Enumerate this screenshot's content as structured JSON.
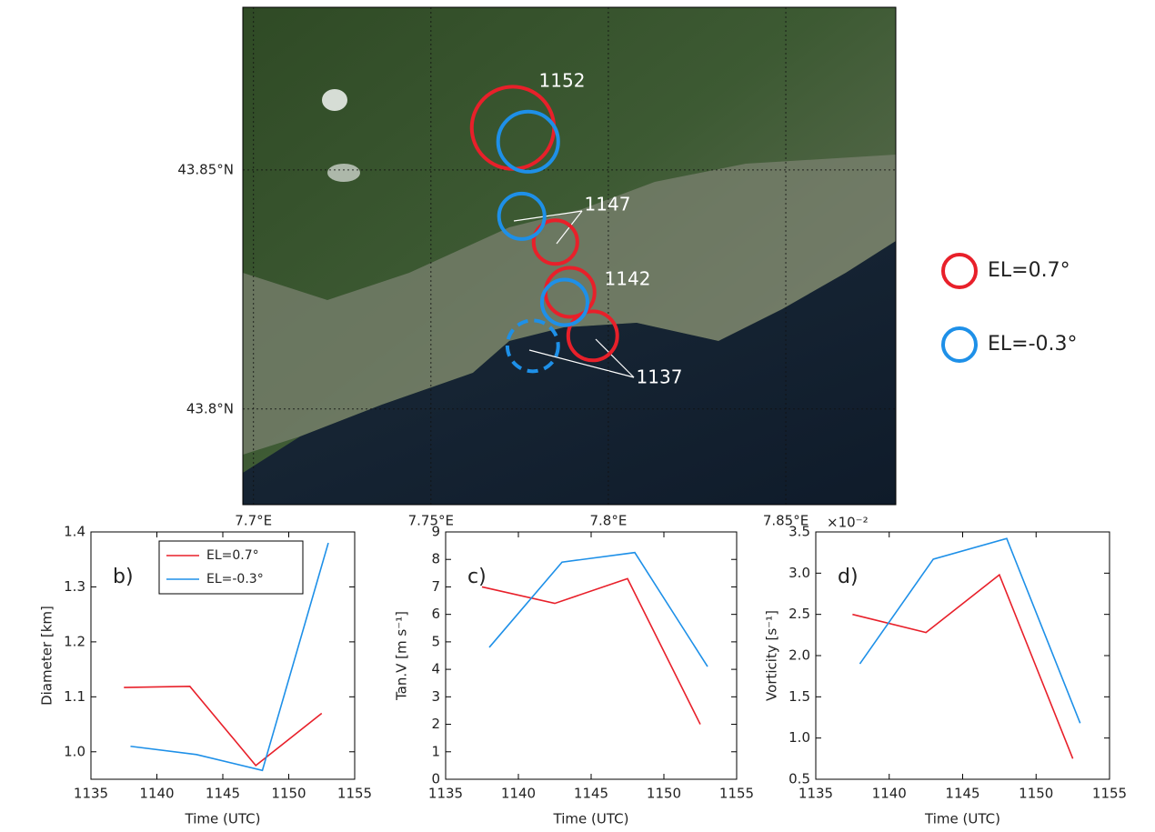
{
  "chart_data": [
    {
      "type": "map",
      "xlim": [
        7.697,
        7.881
      ],
      "ylim": [
        43.78,
        43.884
      ],
      "xticks": [
        {
          "value": 7.7,
          "label": "7.7°E"
        },
        {
          "value": 7.75,
          "label": "7.75°E"
        },
        {
          "value": 7.8,
          "label": "7.8°E"
        },
        {
          "value": 7.85,
          "label": "7.85°E"
        }
      ],
      "yticks": [
        {
          "value": 43.8,
          "label": "43.8°N"
        },
        {
          "value": 43.85,
          "label": "43.85°N"
        }
      ],
      "grid": true,
      "annotations": [
        "1137",
        "1142",
        "1147",
        "1152"
      ],
      "series": [
        {
          "name": "EL=0.7°",
          "color": "#e8202a",
          "x": [
            7.7956,
            7.7892,
            7.7851,
            7.7731
          ],
          "y": [
            43.8153,
            43.8244,
            43.8349,
            43.8588
          ],
          "sizes": [
            1.11,
            1.11,
            0.99,
            1.86
          ],
          "linestyle": [
            "solid",
            "solid",
            "solid",
            "solid"
          ]
        },
        {
          "name": "EL=-0.3°",
          "color": "#1e90e8",
          "x": [
            7.7787,
            7.7877,
            7.7756,
            7.7774
          ],
          "y": [
            43.8132,
            43.8223,
            43.8403,
            43.8559
          ],
          "sizes": [
            1.15,
            1.03,
            1.03,
            1.36
          ],
          "linestyle": [
            "dashed",
            "solid",
            "solid",
            "solid"
          ]
        }
      ]
    },
    {
      "type": "line",
      "panel_label": "b)",
      "xlabel": "Time (UTC)",
      "ylabel": "Diameter [km]",
      "xlim": [
        1135,
        1155
      ],
      "ylim": [
        0.95,
        1.4
      ],
      "xticks": [
        1135,
        1140,
        1145,
        1150,
        1155
      ],
      "yticks": [
        {
          "value": 1,
          "label": "1.0"
        },
        1.1,
        1.2,
        1.3,
        1.4
      ],
      "legend": "upper center",
      "series": [
        {
          "name": "EL=0.7°",
          "color": "#e8202a",
          "x": [
            1137.5,
            1142.5,
            1147.5,
            1152.5
          ],
          "values": [
            1.117,
            1.119,
            0.975,
            1.07
          ]
        },
        {
          "name": "EL=-0.3°",
          "color": "#1e90e8",
          "x": [
            1138,
            1143,
            1148,
            1153
          ],
          "values": [
            1.01,
            0.995,
            0.966,
            1.38
          ]
        }
      ]
    },
    {
      "type": "line",
      "panel_label": "c)",
      "xlabel": "Time (UTC)",
      "ylabel": "Tan.V [m s⁻¹]",
      "xlim": [
        1135,
        1155
      ],
      "ylim": [
        0,
        9
      ],
      "xticks": [
        1135,
        1140,
        1145,
        1150,
        1155
      ],
      "yticks": [
        0,
        1,
        2,
        3,
        4,
        5,
        6,
        7,
        8,
        9
      ],
      "series": [
        {
          "name": "EL=0.7°",
          "color": "#e8202a",
          "x": [
            1137.5,
            1142.5,
            1147.5,
            1152.5
          ],
          "values": [
            7.0,
            6.4,
            7.3,
            2.0
          ]
        },
        {
          "name": "EL=-0.3°",
          "color": "#1e90e8",
          "x": [
            1138,
            1143,
            1148,
            1153
          ],
          "values": [
            4.8,
            7.9,
            8.25,
            4.1
          ]
        }
      ]
    },
    {
      "type": "line",
      "panel_label": "d)",
      "xlabel": "Time (UTC)",
      "ylabel": "Vorticity [s⁻¹]",
      "offset_text": "×10⁻²",
      "xlim": [
        1135,
        1155
      ],
      "ylim": [
        0.5,
        3.5
      ],
      "xticks": [
        1135,
        1140,
        1145,
        1150,
        1155
      ],
      "yticks": [
        0.5,
        {
          "value": 1,
          "label": "1.0"
        },
        1.5,
        {
          "value": 2,
          "label": "2.0"
        },
        2.5,
        {
          "value": 3,
          "label": "3.0"
        },
        3.5
      ],
      "series": [
        {
          "name": "EL=0.7°",
          "color": "#e8202a",
          "x": [
            1137.5,
            1142.5,
            1147.5,
            1152.5
          ],
          "values": [
            2.5,
            2.28,
            2.98,
            0.75
          ]
        },
        {
          "name": "EL=-0.3°",
          "color": "#1e90e8",
          "x": [
            1138,
            1143,
            1148,
            1153
          ],
          "values": [
            1.9,
            3.17,
            3.42,
            1.18
          ]
        }
      ]
    }
  ]
}
